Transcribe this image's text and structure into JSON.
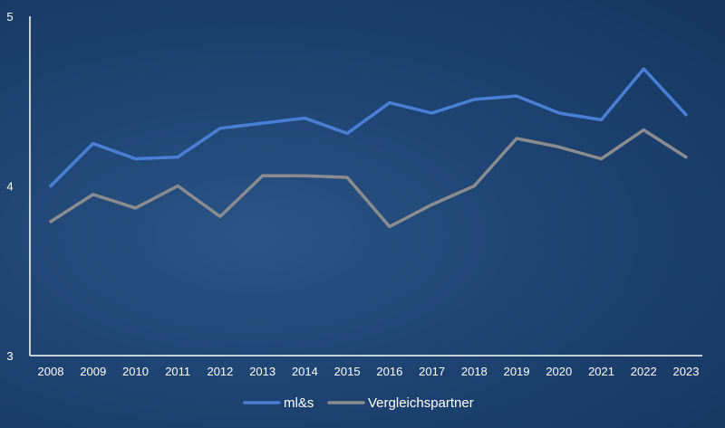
{
  "chart_data": {
    "type": "line",
    "title": "",
    "xlabel": "",
    "ylabel": "",
    "categories": [
      "2008",
      "2009",
      "2010",
      "2011",
      "2012",
      "2013",
      "2014",
      "2015",
      "2016",
      "2017",
      "2018",
      "2019",
      "2020",
      "2021",
      "2022",
      "2023"
    ],
    "ylim": [
      3,
      5
    ],
    "yticks": [
      "3",
      "4",
      "5"
    ],
    "grid": false,
    "legend_position": "bottom",
    "series": [
      {
        "name": "ml&s",
        "color": "#4a7fd6",
        "values": [
          4.0,
          4.25,
          4.16,
          4.17,
          4.34,
          4.37,
          4.4,
          4.31,
          4.49,
          4.43,
          4.51,
          4.53,
          4.43,
          4.39,
          4.69,
          4.42
        ]
      },
      {
        "name": "Vergleichspartner",
        "color": "#8a8c90",
        "values": [
          3.79,
          3.95,
          3.87,
          4.0,
          3.82,
          4.06,
          4.06,
          4.05,
          3.76,
          3.89,
          4.0,
          4.28,
          4.23,
          4.16,
          4.33,
          4.17
        ]
      }
    ]
  }
}
